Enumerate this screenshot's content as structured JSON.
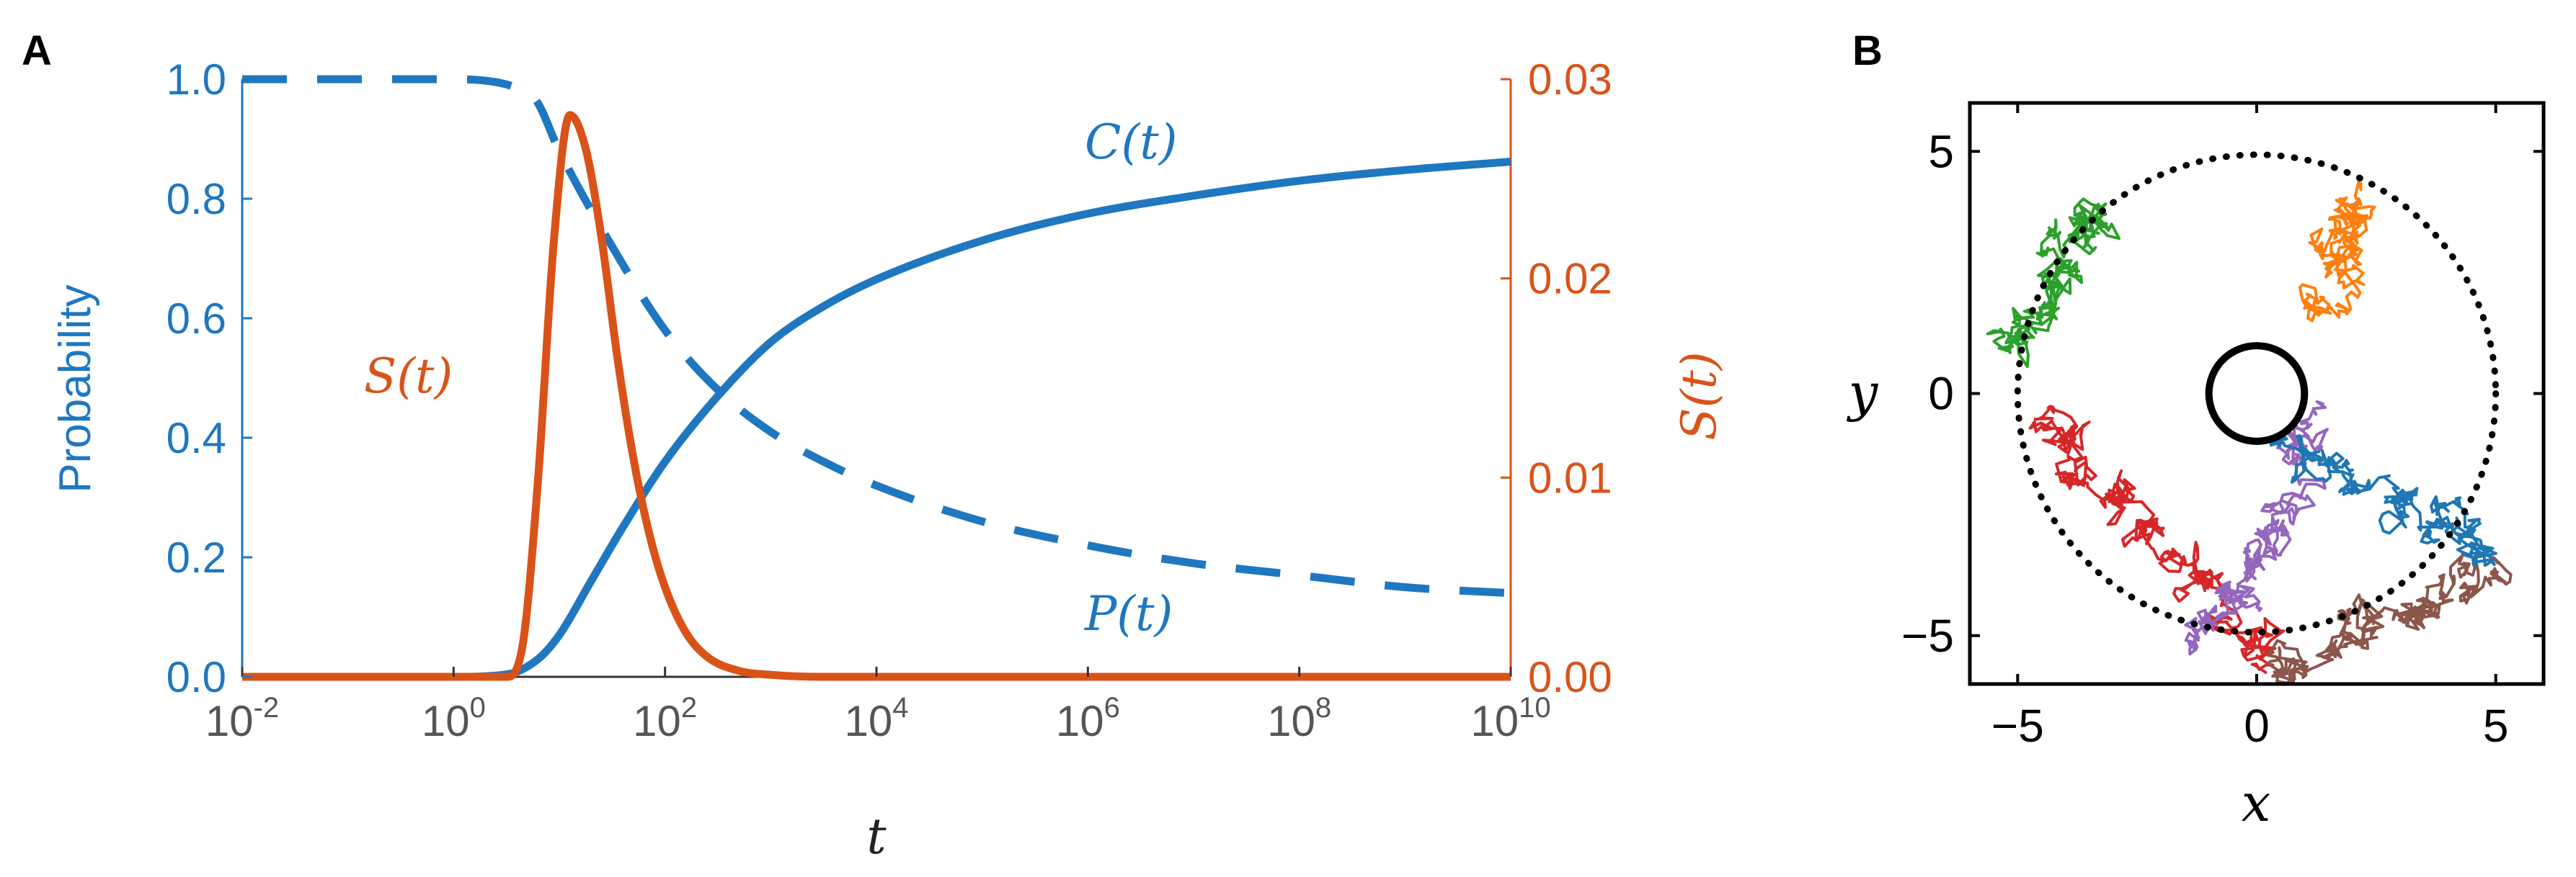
{
  "panel_labels": [
    "A",
    "B"
  ],
  "colors": {
    "blue": "#1f77c0",
    "orange": "#d95319",
    "tick_gray": "#555555",
    "black": "#000000",
    "walk_colors": [
      "#2ca02c",
      "#ff7f0e",
      "#d62728",
      "#9467bd",
      "#1f77b4",
      "#8c564b"
    ]
  },
  "chart_data": [
    {
      "type": "line",
      "panel": "A",
      "xlabel": "t",
      "ylabel_left": "Probability",
      "ylabel_right": "S(t)",
      "xscale": "log",
      "xlim_log10": [
        -2,
        10
      ],
      "x_tick_labels": [
        {
          "base": "10",
          "exp": "-2"
        },
        {
          "base": "10",
          "exp": "0"
        },
        {
          "base": "10",
          "exp": "2"
        },
        {
          "base": "10",
          "exp": "4"
        },
        {
          "base": "10",
          "exp": "6"
        },
        {
          "base": "10",
          "exp": "8"
        },
        {
          "base": "10",
          "exp": "10"
        }
      ],
      "ylim_left": [
        0,
        1
      ],
      "y_left_tick_labels": [
        "0.0",
        "0.2",
        "0.4",
        "0.6",
        "0.8",
        "1.0"
      ],
      "ylim_right": [
        0,
        0.03
      ],
      "y_right_tick_labels": [
        "0.00",
        "0.01",
        "0.02",
        "0.03"
      ],
      "annotations": [
        "C(t)",
        "P(t)",
        "S(t)"
      ],
      "series": [
        {
          "name": "C(t)",
          "axis": "left",
          "style": "solid",
          "color": "blue",
          "log10_t": [
            -2,
            0,
            0.5,
            0.8,
            1,
            1.3,
            1.6,
            2,
            2.5,
            3,
            3.5,
            4,
            5,
            6,
            7,
            8,
            9,
            10
          ],
          "values": [
            0,
            0,
            0.004,
            0.03,
            0.07,
            0.16,
            0.25,
            0.36,
            0.47,
            0.56,
            0.62,
            0.665,
            0.73,
            0.775,
            0.805,
            0.83,
            0.848,
            0.862
          ]
        },
        {
          "name": "P(t)",
          "axis": "left",
          "style": "dashed",
          "color": "blue",
          "log10_t": [
            -2,
            0,
            0.4,
            0.6,
            0.78,
            1,
            1.5,
            2,
            2.5,
            3,
            3.5,
            4,
            5,
            6,
            7,
            8,
            9,
            10
          ],
          "values": [
            1.0,
            1.0,
            0.995,
            0.985,
            0.965,
            0.88,
            0.72,
            0.58,
            0.48,
            0.41,
            0.36,
            0.32,
            0.26,
            0.22,
            0.19,
            0.17,
            0.15,
            0.14
          ]
        },
        {
          "name": "S(t)",
          "axis": "right",
          "style": "solid",
          "color": "orange",
          "log10_t": [
            -2,
            0.5,
            0.65,
            0.8,
            0.95,
            1.1,
            1.25,
            1.4,
            1.55,
            1.7,
            1.85,
            2,
            2.2,
            2.4,
            2.7,
            3,
            3.5,
            10
          ],
          "values": [
            0,
            0,
            0.0015,
            0.01,
            0.022,
            0.0282,
            0.0265,
            0.022,
            0.016,
            0.011,
            0.0072,
            0.0045,
            0.0022,
            0.001,
            0.0003,
            0.0001,
            0,
            0
          ]
        }
      ]
    },
    {
      "type": "scatter",
      "panel": "B",
      "xlabel": "x",
      "ylabel": "y",
      "xlim": [
        -6,
        6
      ],
      "ylim": [
        -6,
        6
      ],
      "x_tick_labels": [
        "−5",
        "0",
        "5"
      ],
      "y_tick_labels": [
        "−5",
        "0",
        "5"
      ],
      "inner_circle_radius": 1,
      "outer_circle_radius": 5,
      "walks": [
        {
          "color": "green",
          "start": [
            -5.2,
            1.2
          ],
          "target": [
            -3.0,
            4.0
          ],
          "steps": 320,
          "spread": 0.55
        },
        {
          "color": "orange",
          "start": [
            1.3,
            2.0
          ],
          "target": [
            2.4,
            4.3
          ],
          "steps": 240,
          "spread": 0.45
        },
        {
          "color": "red",
          "start": [
            0.2,
            -5.6
          ],
          "target": [
            -4.8,
            0.0
          ],
          "steps": 420,
          "spread": 0.55
        },
        {
          "color": "purple",
          "start": [
            -1.3,
            -5.2
          ],
          "target": [
            1.6,
            -0.3
          ],
          "steps": 360,
          "spread": 0.5
        },
        {
          "color": "blue",
          "start": [
            0.5,
            -1.0
          ],
          "target": [
            5.6,
            -3.5
          ],
          "steps": 340,
          "spread": 0.45
        },
        {
          "color": "brown",
          "start": [
            0.6,
            -5.9
          ],
          "target": [
            5.2,
            -3.6
          ],
          "steps": 360,
          "spread": 0.5
        }
      ]
    }
  ]
}
